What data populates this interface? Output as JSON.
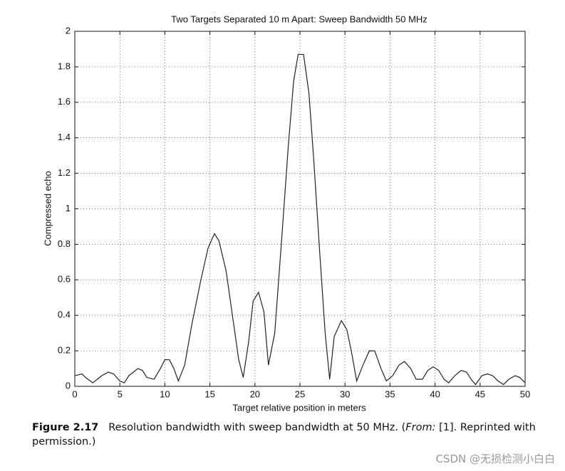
{
  "chart_data": {
    "type": "line",
    "title": "Two Targets Separated 10 m Apart: Sweep Bandwidth 50 MHz",
    "x_label": "Target relative position in meters",
    "y_label": "Compressed echo",
    "x": [
      0,
      0.8,
      1.2,
      2,
      3,
      3.7,
      4.3,
      5,
      5.5,
      6,
      7,
      7.5,
      8,
      8.8,
      9.5,
      10,
      10.5,
      11,
      11.5,
      12.2,
      13,
      14,
      14.8,
      15.5,
      16,
      16.8,
      17.5,
      18.2,
      18.7,
      19.3,
      19.8,
      20.4,
      21,
      21.5,
      22.2,
      23,
      23.7,
      24.3,
      24.8,
      25.4,
      26,
      26.5,
      27.2,
      27.8,
      28.3,
      28.8,
      29.6,
      30.2,
      30.7,
      31.3,
      32,
      32.7,
      33.3,
      34,
      34.6,
      35.3,
      36,
      36.6,
      37.3,
      37.9,
      38.6,
      39.2,
      39.8,
      40.4,
      41,
      41.5,
      42.2,
      42.9,
      43.5,
      44,
      44.5,
      45.2,
      45.8,
      46.4,
      47,
      47.6,
      48.2,
      48.9,
      49.4,
      50
    ],
    "values": [
      0.06,
      0.07,
      0.05,
      0.02,
      0.06,
      0.08,
      0.07,
      0.03,
      0.02,
      0.06,
      0.1,
      0.09,
      0.05,
      0.04,
      0.1,
      0.15,
      0.15,
      0.1,
      0.03,
      0.12,
      0.35,
      0.6,
      0.78,
      0.86,
      0.82,
      0.65,
      0.4,
      0.15,
      0.05,
      0.25,
      0.48,
      0.53,
      0.42,
      0.12,
      0.3,
      0.85,
      1.35,
      1.72,
      1.87,
      1.87,
      1.65,
      1.3,
      0.75,
      0.3,
      0.04,
      0.28,
      0.37,
      0.32,
      0.2,
      0.03,
      0.12,
      0.2,
      0.2,
      0.1,
      0.03,
      0.06,
      0.12,
      0.14,
      0.1,
      0.04,
      0.04,
      0.09,
      0.11,
      0.09,
      0.04,
      0.02,
      0.06,
      0.09,
      0.08,
      0.04,
      0.01,
      0.06,
      0.07,
      0.06,
      0.03,
      0.01,
      0.04,
      0.06,
      0.05,
      0.02
    ],
    "color": "#222222",
    "xlim": [
      0,
      50
    ],
    "xticks": [
      0,
      5,
      10,
      15,
      20,
      25,
      30,
      35,
      40,
      45,
      50
    ],
    "ylim": [
      0,
      2
    ],
    "yticks": [
      0,
      0.2,
      0.4,
      0.6,
      0.8,
      1,
      1.2,
      1.4,
      1.6,
      1.8,
      2
    ],
    "grid": true
  },
  "caption": {
    "label": "Figure 2.17",
    "text": "Resolution bandwidth with sweep bandwidth at 50 MHz. (",
    "source_label": "From:",
    "source_text": " [1]. Reprinted with permission.)"
  },
  "watermark": "CSDN @无损检测小白白"
}
